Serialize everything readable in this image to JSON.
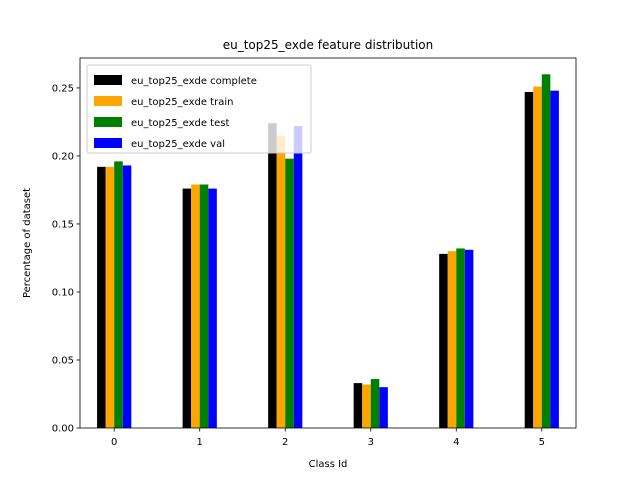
{
  "chart_data": {
    "type": "bar",
    "title": "eu_top25_exde feature distribution",
    "xlabel": "Class Id",
    "ylabel": "Percentage of dataset",
    "categories": [
      "0",
      "1",
      "2",
      "3",
      "4",
      "5"
    ],
    "ylim": [
      0,
      0.272
    ],
    "yticks": [
      "0.00",
      "0.05",
      "0.10",
      "0.15",
      "0.20",
      "0.25"
    ],
    "legend_position": "top-left",
    "grid": false,
    "series": [
      {
        "name": "eu_top25_exde complete",
        "color": "#000000",
        "values": [
          0.192,
          0.176,
          0.224,
          0.033,
          0.128,
          0.247
        ]
      },
      {
        "name": "eu_top25_exde train",
        "color": "#ffa500",
        "values": [
          0.192,
          0.179,
          0.215,
          0.032,
          0.13,
          0.251
        ]
      },
      {
        "name": "eu_top25_exde test",
        "color": "#008000",
        "values": [
          0.196,
          0.179,
          0.198,
          0.036,
          0.132,
          0.26
        ]
      },
      {
        "name": "eu_top25_exde val",
        "color": "#0000ff",
        "values": [
          0.193,
          0.176,
          0.222,
          0.03,
          0.131,
          0.248
        ]
      }
    ]
  }
}
